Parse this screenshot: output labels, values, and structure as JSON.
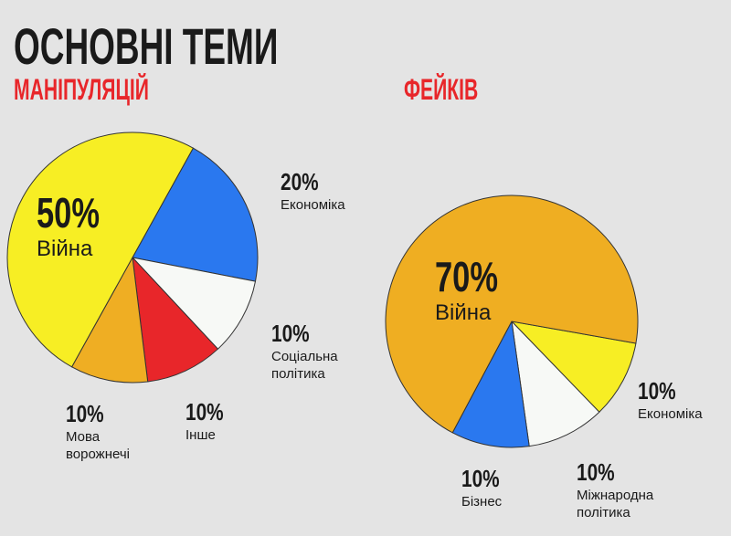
{
  "title": "ОСНОВНІ ТЕМИ",
  "chart_data": [
    {
      "type": "pie",
      "title": "МАНІПУЛЯЦІЙ",
      "categories": [
        "Економіка",
        "Соціальна політика",
        "Інше",
        "Мова ворожнечі",
        "Війна"
      ],
      "values": [
        20,
        10,
        10,
        10,
        50
      ],
      "value_labels": [
        "20%",
        "10%",
        "10%",
        "10%",
        "50%"
      ],
      "colors": [
        "#2a78ef",
        "#f7f9f6",
        "#e8262a",
        "#efae23",
        "#f7ee24"
      ]
    },
    {
      "type": "pie",
      "title": "ФЕЙКІВ",
      "categories": [
        "Економіка",
        "Міжнародна політика",
        "Бізнес",
        "Війна"
      ],
      "values": [
        10,
        10,
        10,
        70
      ],
      "value_labels": [
        "10%",
        "10%",
        "10%",
        "70%"
      ],
      "colors": [
        "#f7ee24",
        "#f7f9f6",
        "#2a78ef",
        "#efae22"
      ]
    }
  ]
}
